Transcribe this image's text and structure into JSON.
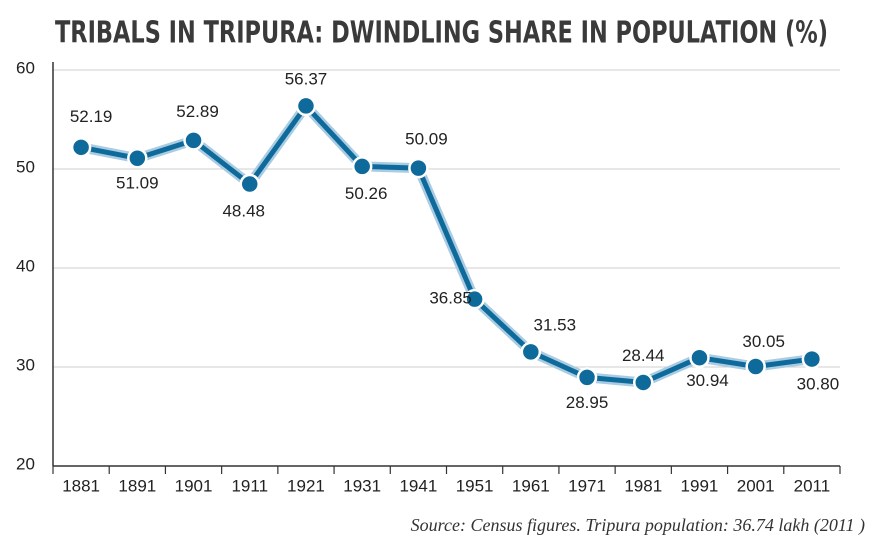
{
  "chart_data": {
    "type": "line",
    "title": "TRIBALS IN TRIPURA: DWINDLING SHARE IN POPULATION (%)",
    "categories": [
      "1881",
      "1891",
      "1901",
      "1911",
      "1921",
      "1931",
      "1941",
      "1951",
      "1961",
      "1971",
      "1981",
      "1991",
      "2001",
      "2011"
    ],
    "series": [
      {
        "color": "#0f6a9c",
        "values": [
          52.19,
          51.09,
          52.89,
          48.48,
          56.37,
          50.26,
          50.09,
          36.85,
          31.53,
          28.95,
          28.44,
          30.94,
          30.05,
          30.8
        ],
        "value_labels": [
          "52.19",
          "51.09",
          "52.89",
          "48.48",
          "56.37",
          "50.26",
          "50.09",
          "36.85",
          "31.53",
          "28.95",
          "28.44",
          "30.94",
          "30.05",
          "30.80"
        ]
      }
    ],
    "ylim": [
      20,
      60
    ],
    "yticks": [
      20,
      30,
      40,
      50,
      60
    ],
    "grid": true,
    "source": "Source: Census figures. Tripura population: 36.74 lakh (2011 )"
  }
}
